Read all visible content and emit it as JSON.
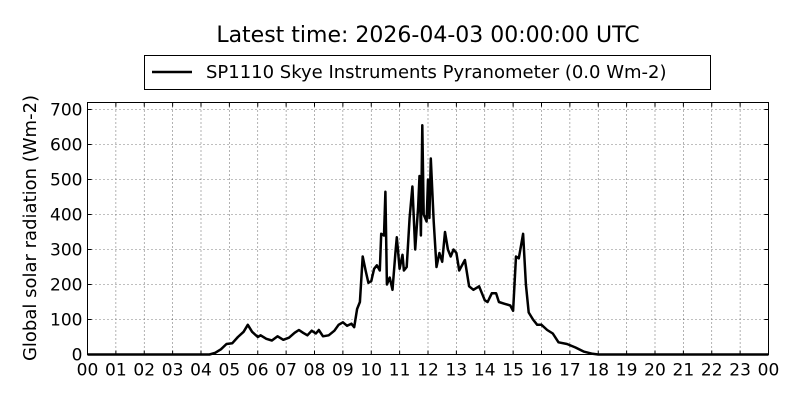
{
  "chart_data": {
    "type": "line",
    "title": "Latest time: 2026-04-03 00:00:00 UTC",
    "xlabel": "",
    "ylabel": "Global solar radiation (Wm-2)",
    "xlim": [
      0,
      24
    ],
    "ylim": [
      0,
      720
    ],
    "grid": true,
    "legend_placement": "top-center-outside",
    "x_tick_labels": [
      "00",
      "01",
      "02",
      "03",
      "04",
      "05",
      "06",
      "07",
      "08",
      "09",
      "10",
      "11",
      "12",
      "13",
      "14",
      "15",
      "16",
      "17",
      "18",
      "19",
      "20",
      "21",
      "22",
      "23",
      "00"
    ],
    "y_ticks": [
      0,
      100,
      200,
      300,
      400,
      500,
      600,
      700
    ],
    "series": [
      {
        "name": "SP1110 Skye Instruments Pyranometer (0.0 Wm-2)",
        "color": "#000000",
        "x": [
          0,
          4.3,
          4.5,
          4.7,
          4.9,
          5.1,
          5.3,
          5.5,
          5.65,
          5.8,
          6.0,
          6.1,
          6.3,
          6.5,
          6.7,
          6.9,
          7.1,
          7.3,
          7.45,
          7.6,
          7.75,
          7.9,
          8.05,
          8.15,
          8.3,
          8.5,
          8.7,
          8.85,
          9.0,
          9.15,
          9.3,
          9.4,
          9.5,
          9.6,
          9.7,
          9.8,
          9.9,
          10.0,
          10.1,
          10.2,
          10.3,
          10.35,
          10.45,
          10.5,
          10.55,
          10.65,
          10.75,
          10.85,
          10.9,
          11.0,
          11.1,
          11.15,
          11.25,
          11.35,
          11.45,
          11.55,
          11.65,
          11.7,
          11.75,
          11.8,
          11.85,
          11.95,
          12.0,
          12.05,
          12.1,
          12.2,
          12.3,
          12.4,
          12.5,
          12.6,
          12.7,
          12.8,
          12.9,
          13.0,
          13.1,
          13.2,
          13.3,
          13.45,
          13.6,
          13.8,
          14.0,
          14.1,
          14.25,
          14.4,
          14.5,
          14.7,
          14.9,
          15.0,
          15.1,
          15.2,
          15.35,
          15.45,
          15.55,
          15.7,
          15.85,
          16.0,
          16.2,
          16.4,
          16.6,
          16.9,
          17.2,
          17.5,
          17.8,
          18.0,
          24
        ],
        "y": [
          0,
          0,
          5,
          15,
          30,
          32,
          50,
          65,
          85,
          65,
          50,
          55,
          45,
          40,
          52,
          42,
          48,
          62,
          70,
          62,
          55,
          68,
          60,
          70,
          52,
          55,
          68,
          85,
          92,
          82,
          88,
          78,
          130,
          150,
          280,
          240,
          205,
          210,
          245,
          255,
          240,
          345,
          340,
          465,
          200,
          220,
          185,
          290,
          335,
          245,
          285,
          240,
          250,
          390,
          480,
          300,
          420,
          510,
          340,
          655,
          400,
          380,
          500,
          390,
          560,
          380,
          250,
          290,
          265,
          350,
          300,
          280,
          300,
          290,
          240,
          255,
          270,
          195,
          185,
          195,
          155,
          150,
          175,
          175,
          150,
          145,
          140,
          125,
          280,
          275,
          345,
          200,
          120,
          100,
          85,
          85,
          70,
          60,
          35,
          30,
          20,
          8,
          2,
          0,
          0
        ]
      }
    ]
  }
}
